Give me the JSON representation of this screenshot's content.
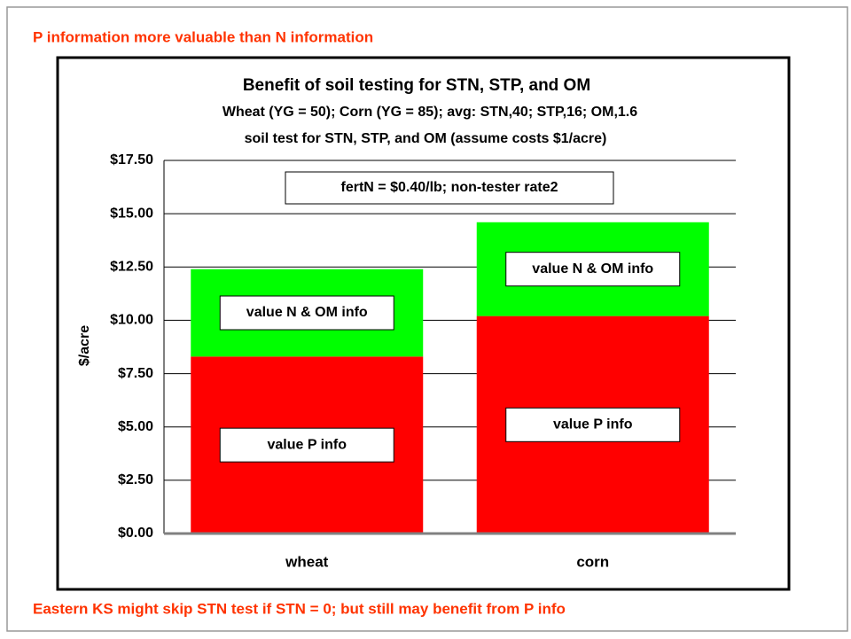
{
  "chart_data": {
    "type": "stacked_bar",
    "header": "P information more valuable than N information",
    "title": "Benefit of soil testing for STN, STP, and OM",
    "subtitle": [
      "Wheat (YG = 50); Corn (YG = 85); avg: STN,40; STP,16; OM,1.6",
      "soil test for STN, STP, and OM (assume costs $1/acre)"
    ],
    "annotation": "fertN = $0.40/lb; non-tester rate2",
    "footer": "Eastern KS might skip STN test if STN = 0; but still may benefit from P info",
    "y_label": "$/acre",
    "categories": [
      "wheat",
      "corn"
    ],
    "series": [
      {
        "name": "value P info",
        "color": "#ff0000",
        "values": [
          8.3,
          10.2
        ]
      },
      {
        "name": "value N & OM info",
        "color": "#00ff00",
        "values": [
          4.1,
          4.4
        ]
      }
    ],
    "ylim": [
      0,
      17.5
    ],
    "yticks": [
      {
        "value": 0,
        "label": "$0.00"
      },
      {
        "value": 2.5,
        "label": "$2.50"
      },
      {
        "value": 5,
        "label": "$5.00"
      },
      {
        "value": 7.5,
        "label": "$7.50"
      },
      {
        "value": 10,
        "label": "$10.00"
      },
      {
        "value": 12.5,
        "label": "$12.50"
      },
      {
        "value": 15,
        "label": "$15.00"
      },
      {
        "value": 17.5,
        "label": "$17.50"
      }
    ],
    "grid": true
  }
}
